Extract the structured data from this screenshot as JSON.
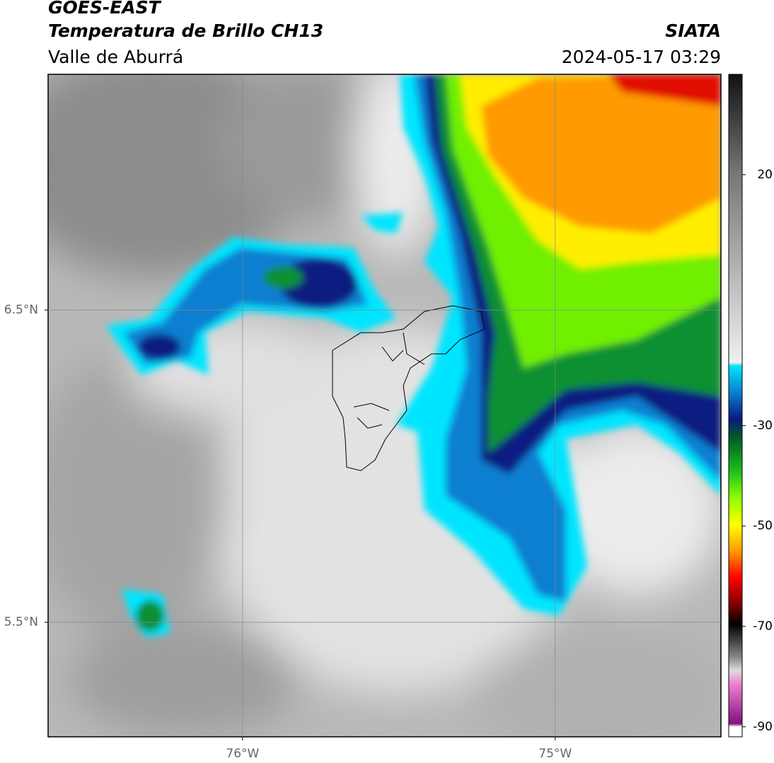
{
  "header": {
    "satellite": "GOES-EAST",
    "product": "Temperatura de Brillo CH13",
    "region": "Valle de Aburrá",
    "source": "SIATA",
    "datetime": "2024-05-17 03:29"
  },
  "map": {
    "xlim": [
      -76.622,
      -74.47
    ],
    "ylim": [
      5.133,
      7.255
    ],
    "xticks": [
      {
        "value": -76,
        "label": "76°W"
      },
      {
        "value": -75,
        "label": "75°W"
      }
    ],
    "yticks": [
      {
        "value": 6.5,
        "label": "6.5°N"
      },
      {
        "value": 5.5,
        "label": "5.5°N"
      }
    ],
    "grid": true
  },
  "colorbar": {
    "lim": [
      -92,
      40
    ],
    "ticks": [
      20,
      -30,
      -50,
      -70,
      -90
    ]
  }
}
